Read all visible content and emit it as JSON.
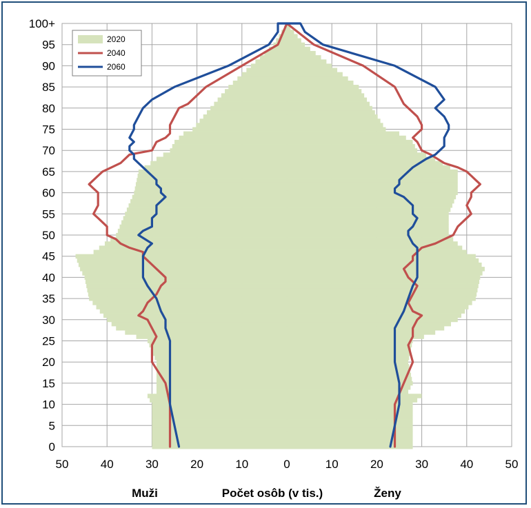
{
  "chart_data": {
    "type": "population-pyramid",
    "x_left_label": "Muži",
    "x_center_label": "Počet osôb (v tis.)",
    "x_right_label": "Ženy",
    "xlim": [
      -50,
      50
    ],
    "x_ticks": [
      {
        "value": -50,
        "label": "50"
      },
      {
        "value": -40,
        "label": "40"
      },
      {
        "value": -30,
        "label": "30"
      },
      {
        "value": -20,
        "label": "20"
      },
      {
        "value": -10,
        "label": "10"
      },
      {
        "value": 0,
        "label": "0"
      },
      {
        "value": 10,
        "label": "10"
      },
      {
        "value": 20,
        "label": "20"
      },
      {
        "value": 30,
        "label": "30"
      },
      {
        "value": 40,
        "label": "40"
      },
      {
        "value": 50,
        "label": "50"
      }
    ],
    "y_ticks": [
      {
        "value": 0,
        "label": "0"
      },
      {
        "value": 5,
        "label": "5"
      },
      {
        "value": 10,
        "label": "10"
      },
      {
        "value": 15,
        "label": "15"
      },
      {
        "value": 20,
        "label": "20"
      },
      {
        "value": 25,
        "label": "25"
      },
      {
        "value": 30,
        "label": "30"
      },
      {
        "value": 35,
        "label": "35"
      },
      {
        "value": 40,
        "label": "40"
      },
      {
        "value": 45,
        "label": "45"
      },
      {
        "value": 50,
        "label": "50"
      },
      {
        "value": 55,
        "label": "55"
      },
      {
        "value": 60,
        "label": "60"
      },
      {
        "value": 65,
        "label": "65"
      },
      {
        "value": 70,
        "label": "70"
      },
      {
        "value": 75,
        "label": "75"
      },
      {
        "value": 80,
        "label": "80"
      },
      {
        "value": 85,
        "label": "85"
      },
      {
        "value": 90,
        "label": "90"
      },
      {
        "value": 95,
        "label": "95"
      },
      {
        "value": 100,
        "label": "100+"
      }
    ],
    "ylim": [
      0,
      100
    ],
    "grid": true,
    "legend_position": "top-left",
    "series": [
      {
        "name": "2020",
        "style": "bars",
        "color": "#d6e3bc",
        "ages": [
          0,
          5,
          10,
          12,
          13,
          15,
          20,
          25,
          27,
          28,
          30,
          35,
          40,
          42,
          45,
          46,
          50,
          55,
          60,
          65,
          68,
          70,
          72,
          74,
          75,
          80,
          85,
          90,
          95,
          100
        ],
        "men": [
          30,
          30,
          30,
          31,
          29,
          29,
          29,
          31,
          36,
          38,
          40,
          44,
          45,
          46,
          47,
          43,
          38,
          36,
          34,
          33,
          29,
          26,
          25,
          23,
          21,
          17,
          13,
          8,
          3,
          0
        ],
        "women": [
          28,
          28,
          28,
          30,
          27,
          28,
          27,
          28,
          33,
          35,
          38,
          42,
          43,
          44,
          42,
          40,
          36,
          36,
          38,
          38,
          33,
          29,
          28,
          25,
          22,
          19,
          16,
          10,
          4,
          0
        ]
      },
      {
        "name": "2040",
        "style": "line",
        "color": "#c0504d",
        "ages": [
          0,
          5,
          10,
          15,
          20,
          24,
          26,
          28,
          30,
          31,
          32,
          34,
          36,
          38,
          39,
          40,
          42,
          44,
          45,
          46,
          47,
          48,
          49,
          50,
          52,
          54,
          55,
          57,
          59,
          60,
          61,
          62,
          63,
          64,
          65,
          66,
          67,
          69,
          70,
          72,
          73,
          74,
          75,
          76,
          78,
          80,
          81,
          85,
          90,
          95,
          100
        ],
        "men": [
          26,
          26,
          26,
          27,
          30,
          30,
          29,
          30,
          31,
          33,
          32,
          31,
          29,
          28,
          27,
          27,
          29,
          31,
          32,
          32,
          35,
          37,
          38,
          40,
          40,
          42,
          43,
          42,
          42,
          42,
          43,
          44,
          43,
          42,
          41,
          39,
          37,
          35,
          30,
          29,
          27,
          26,
          26,
          26,
          25,
          24,
          22,
          18,
          10,
          2,
          0
        ],
        "women": [
          24,
          24,
          24,
          26,
          28,
          27,
          28,
          28,
          29,
          30,
          28,
          27,
          28,
          29,
          28,
          27,
          26,
          28,
          28,
          29,
          30,
          33,
          35,
          37,
          38,
          40,
          41,
          40,
          41,
          41,
          42,
          43,
          42,
          41,
          40,
          38,
          35,
          32,
          30,
          29,
          28,
          29,
          30,
          30,
          29,
          27,
          26,
          24,
          17,
          6,
          0
        ]
      },
      {
        "name": "2060",
        "style": "line",
        "color": "#1f4e9a",
        "ages": [
          0,
          5,
          10,
          15,
          20,
          25,
          28,
          30,
          32,
          35,
          38,
          40,
          42,
          45,
          47,
          48,
          50,
          51,
          52,
          54,
          55,
          57,
          58,
          59,
          60,
          61,
          62,
          63,
          64,
          65,
          66,
          68,
          69,
          70,
          71,
          72,
          73,
          75,
          76,
          78,
          80,
          82,
          85,
          90,
          95,
          98,
          100
        ],
        "men": [
          24,
          25,
          26,
          26,
          26,
          26,
          27,
          27,
          28,
          29,
          31,
          32,
          32,
          32,
          31,
          30,
          33,
          32,
          30,
          30,
          29,
          29,
          28,
          27,
          28,
          28,
          29,
          29,
          30,
          31,
          32,
          34,
          34,
          35,
          35,
          34,
          35,
          34,
          34,
          33,
          32,
          30,
          25,
          13,
          4,
          2,
          2
        ],
        "women": [
          23,
          24,
          25,
          25,
          24,
          24,
          24,
          25,
          26,
          27,
          28,
          29,
          29,
          29,
          29,
          28,
          27,
          27,
          28,
          29,
          28,
          28,
          27,
          26,
          24,
          24,
          25,
          25,
          26,
          27,
          28,
          31,
          33,
          34,
          35,
          35,
          35,
          36,
          36,
          35,
          33,
          35,
          33,
          24,
          8,
          4,
          3
        ]
      }
    ]
  }
}
